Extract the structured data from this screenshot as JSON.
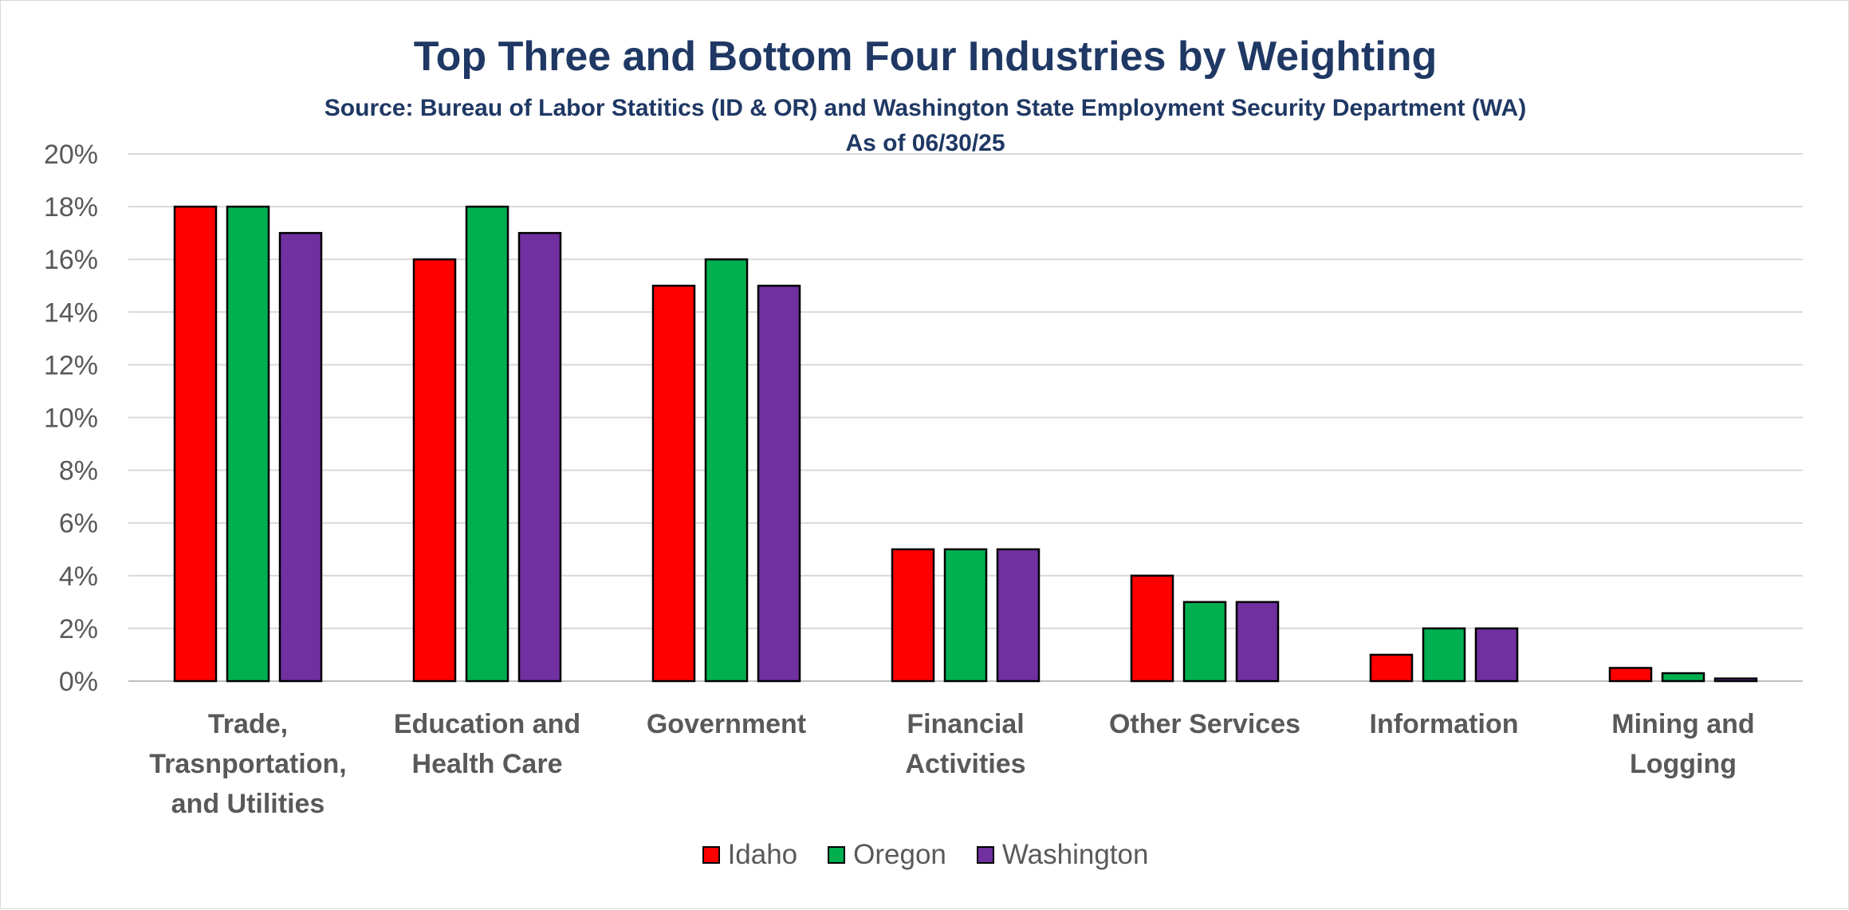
{
  "chart_data": {
    "type": "bar",
    "title": "Top Three and Bottom Four Industries by Weighting",
    "subtitle": "Source: Bureau of Labor Statitics (ID & OR) and Washington State Employment Security Department (WA)",
    "as_of": "As of 06/30/25",
    "xlabel": "",
    "ylabel": "",
    "ylim": [
      0,
      20
    ],
    "y_ticks": [
      "0%",
      "2%",
      "4%",
      "6%",
      "8%",
      "10%",
      "12%",
      "14%",
      "16%",
      "18%",
      "20%"
    ],
    "grid": true,
    "legend_position": "bottom",
    "categories": [
      [
        "Trade,",
        "Trasnportation,",
        "and Utilities"
      ],
      [
        "Education and",
        "Health Care"
      ],
      [
        "Government"
      ],
      [
        "Financial",
        "Activities"
      ],
      [
        "Other Services"
      ],
      [
        "Information"
      ],
      [
        "Mining and",
        "Logging"
      ]
    ],
    "series": [
      {
        "name": "Idaho",
        "color": "#ff0000",
        "values": [
          18,
          16,
          15,
          5,
          4,
          1,
          0.5
        ]
      },
      {
        "name": "Oregon",
        "color": "#00b050",
        "values": [
          18,
          18,
          16,
          5,
          3,
          2,
          0.3
        ]
      },
      {
        "name": "Washington",
        "color": "#7030a0",
        "values": [
          17,
          17,
          15,
          5,
          3,
          2,
          0.1
        ]
      }
    ]
  }
}
